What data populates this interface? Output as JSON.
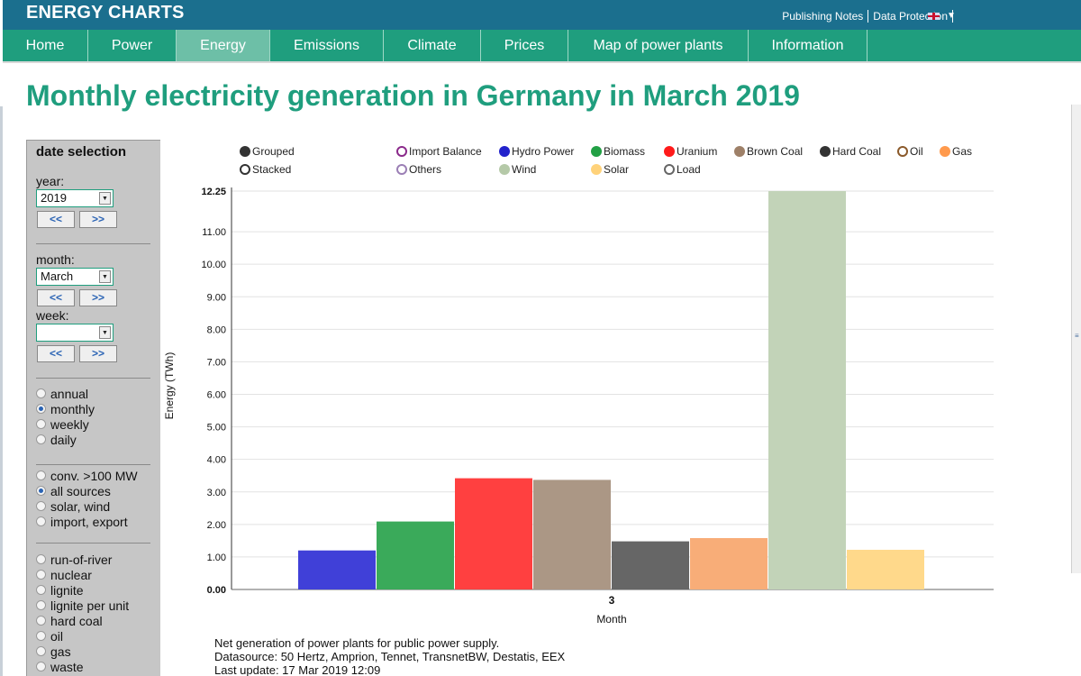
{
  "header": {
    "brand": "ENERGY CHARTS",
    "links": [
      "Publishing Notes",
      "Data Protection"
    ],
    "language_icon": "uk-flag-icon",
    "color": "#1b6f8e"
  },
  "nav": {
    "items": [
      {
        "label": "Home",
        "width": 95
      },
      {
        "label": "Power",
        "width": 98
      },
      {
        "label": "Energy",
        "width": 104,
        "active": true
      },
      {
        "label": "Emissions",
        "width": 126
      },
      {
        "label": "Climate",
        "width": 108
      },
      {
        "label": "Prices",
        "width": 97
      },
      {
        "label": "Map of power plants",
        "width": 200
      },
      {
        "label": "Information",
        "width": 132
      }
    ],
    "color": "#1f9e7e",
    "active_color": "#6dbfa7"
  },
  "page": {
    "title": "Monthly electricity generation in Germany in March 2019"
  },
  "sidebar": {
    "title": "date selection",
    "year_label": "year:",
    "year_value": "2019",
    "month_label": "month:",
    "month_value": "March",
    "week_label": "week:",
    "week_value": "",
    "prev_label": "<<",
    "next_label": ">>",
    "period_options": [
      {
        "label": "annual",
        "selected": false
      },
      {
        "label": "monthly",
        "selected": true
      },
      {
        "label": "weekly",
        "selected": false
      },
      {
        "label": "daily",
        "selected": false
      }
    ],
    "source_options": [
      {
        "label": "conv. >100 MW",
        "selected": false
      },
      {
        "label": "all sources",
        "selected": true
      },
      {
        "label": "solar, wind",
        "selected": false
      },
      {
        "label": "import, export",
        "selected": false
      }
    ],
    "type_options": [
      {
        "label": "run-of-river",
        "selected": false
      },
      {
        "label": "nuclear",
        "selected": false
      },
      {
        "label": "lignite",
        "selected": false
      },
      {
        "label": "lignite per unit",
        "selected": false
      },
      {
        "label": "hard coal",
        "selected": false
      },
      {
        "label": "oil",
        "selected": false
      },
      {
        "label": "gas",
        "selected": false
      },
      {
        "label": "waste",
        "selected": false
      }
    ]
  },
  "legend": {
    "modes": [
      {
        "label": "Grouped",
        "filled": true,
        "color": "#333333"
      },
      {
        "label": "Stacked",
        "filled": false,
        "color": "#333333"
      }
    ],
    "items": [
      {
        "label": "Import Balance",
        "color": "#8b2a8b",
        "filled": false
      },
      {
        "label": "Others",
        "color": "#9b7fb5",
        "filled": false
      },
      {
        "label": "Hydro Power",
        "color": "#2222cc",
        "filled": true
      },
      {
        "label": "Wind",
        "color": "#b5c9a8",
        "filled": true
      },
      {
        "label": "Biomass",
        "color": "#22a045",
        "filled": true
      },
      {
        "label": "Solar",
        "color": "#ffd27a",
        "filled": true
      },
      {
        "label": "Uranium",
        "color": "#ff1a1a",
        "filled": true
      },
      {
        "label": "Load",
        "color": "#666666",
        "filled": false
      },
      {
        "label": "Brown Coal",
        "color": "#9e8068",
        "filled": true
      },
      {
        "label": "Hard Coal",
        "color": "#333333",
        "filled": true
      },
      {
        "label": "Oil",
        "color": "#8b5a2b",
        "filled": false
      },
      {
        "label": "Gas",
        "color": "#ff9a4d",
        "filled": true
      }
    ]
  },
  "chart_data": {
    "type": "bar",
    "mode": "grouped",
    "categories": [
      "3"
    ],
    "xlabel": "Month",
    "ylabel": "Energy (TWh)",
    "ylim": [
      0,
      12.25
    ],
    "yticks": [
      "0.00",
      "1.00",
      "2.00",
      "3.00",
      "4.00",
      "5.00",
      "6.00",
      "7.00",
      "8.00",
      "9.00",
      "10.00",
      "11.00",
      "12.25"
    ],
    "ytick_values": [
      0,
      1,
      2,
      3,
      4,
      5,
      6,
      7,
      8,
      9,
      10,
      11,
      12.25
    ],
    "grid": true,
    "series": [
      {
        "name": "Hydro Power",
        "values": [
          1.2
        ],
        "color": "#4040d8"
      },
      {
        "name": "Biomass",
        "values": [
          2.09
        ],
        "color": "#3aaa5a"
      },
      {
        "name": "Uranium",
        "values": [
          3.42
        ],
        "color": "#ff4040"
      },
      {
        "name": "Brown Coal",
        "values": [
          3.37
        ],
        "color": "#ab9785"
      },
      {
        "name": "Hard Coal",
        "values": [
          1.48
        ],
        "color": "#666666"
      },
      {
        "name": "Gas",
        "values": [
          1.58
        ],
        "color": "#f8ad78"
      },
      {
        "name": "Wind",
        "values": [
          12.25
        ],
        "color": "#c2d3b8"
      },
      {
        "name": "Solar",
        "values": [
          1.22
        ],
        "color": "#ffd98b"
      }
    ]
  },
  "caption": {
    "line1": "Net generation of power plants for public power supply.",
    "line2": "Datasource: 50 Hertz, Amprion, Tennet, TransnetBW, Destatis, EEX",
    "line3": "Last update: 17 Mar 2019 12:09"
  }
}
